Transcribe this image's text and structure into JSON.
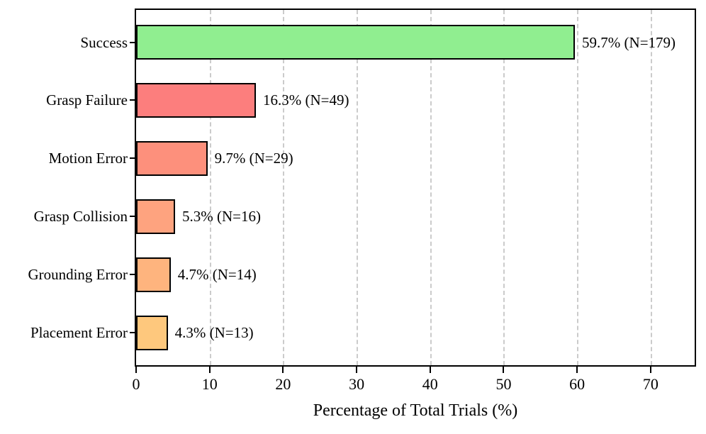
{
  "chart_data": {
    "type": "bar",
    "orientation": "horizontal",
    "title": "",
    "xlabel": "Percentage of Total Trials (%)",
    "ylabel": "",
    "categories": [
      "Success",
      "Grasp Failure",
      "Motion Error",
      "Grasp Collision",
      "Grounding Error",
      "Placement Error"
    ],
    "values": [
      59.7,
      16.3,
      9.7,
      5.3,
      4.7,
      4.3
    ],
    "counts": [
      179,
      49,
      29,
      16,
      14,
      13
    ],
    "bar_labels": [
      "59.7% (N=179)",
      "16.3% (N=49)",
      "9.7% (N=29)",
      "5.3% (N=16)",
      "4.7% (N=14)",
      "4.3% (N=13)"
    ],
    "bar_colors": [
      "#90EE90",
      "#FC7E7D",
      "#FD907C",
      "#FEA37F",
      "#FEB47E",
      "#FEC87D"
    ],
    "bar_edge_color": "#000000",
    "xlim": [
      0,
      75.8
    ],
    "xticks": [
      0,
      10,
      20,
      30,
      40,
      50,
      60,
      70
    ],
    "grid": "vertical-dashed",
    "gridline_color": "#cbcbcb",
    "background_color": "#ffffff",
    "legend": "none"
  }
}
